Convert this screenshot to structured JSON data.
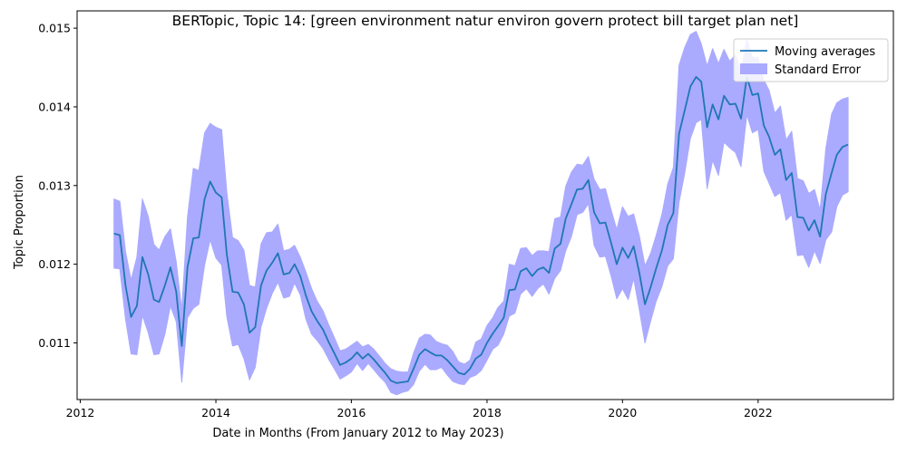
{
  "chart_data": {
    "type": "line",
    "title": "BERTopic, Topic 14: [green environment natur environ govern protect bill target plan net]",
    "xlabel": "Date in Months (From January 2012 to May 2023)",
    "ylabel": "Topic Proportion",
    "xlim": [
      "2011-12-15",
      "2023-12-31"
    ],
    "ylim": [
      0.01028,
      0.01522
    ],
    "xticks": [
      {
        "label": "2012",
        "date": "2012-01-01"
      },
      {
        "label": "2014",
        "date": "2014-01-01"
      },
      {
        "label": "2016",
        "date": "2016-01-01"
      },
      {
        "label": "2018",
        "date": "2018-01-01"
      },
      {
        "label": "2020",
        "date": "2020-01-01"
      },
      {
        "label": "2022",
        "date": "2022-01-01"
      }
    ],
    "yticks": [
      {
        "label": "0.011",
        "value": 0.011
      },
      {
        "label": "0.012",
        "value": 0.012
      },
      {
        "label": "0.013",
        "value": 0.013
      },
      {
        "label": "0.014",
        "value": 0.014
      },
      {
        "label": "0.015",
        "value": 0.015
      }
    ],
    "grid": false,
    "legend": {
      "position": "top-right",
      "entries": [
        {
          "label": "Moving averages",
          "kind": "line",
          "color": "#1f77b4"
        },
        {
          "label": "Standard Error",
          "kind": "band",
          "color": "#aaaaff"
        }
      ]
    },
    "series": [
      {
        "name": "Moving averages",
        "color": "#1f77b4",
        "x": [
          "2012-07",
          "2012-08",
          "2012-09",
          "2012-10",
          "2012-11",
          "2012-12",
          "2013-01",
          "2013-02",
          "2013-03",
          "2013-04",
          "2013-05",
          "2013-06",
          "2013-07",
          "2013-08",
          "2013-09",
          "2013-10",
          "2013-11",
          "2013-12",
          "2014-01",
          "2014-02",
          "2014-03",
          "2014-04",
          "2014-05",
          "2014-06",
          "2014-07",
          "2014-08",
          "2014-09",
          "2014-10",
          "2014-11",
          "2014-12",
          "2015-01",
          "2015-02",
          "2015-03",
          "2015-04",
          "2015-05",
          "2015-06",
          "2015-07",
          "2015-08",
          "2015-09",
          "2015-10",
          "2015-11",
          "2015-12",
          "2016-01",
          "2016-02",
          "2016-03",
          "2016-04",
          "2016-05",
          "2016-06",
          "2016-07",
          "2016-08",
          "2016-09",
          "2016-10",
          "2016-11",
          "2016-12",
          "2017-01",
          "2017-02",
          "2017-03",
          "2017-04",
          "2017-05",
          "2017-06",
          "2017-07",
          "2017-08",
          "2017-09",
          "2017-10",
          "2017-11",
          "2017-12",
          "2018-01",
          "2018-02",
          "2018-03",
          "2018-04",
          "2018-05",
          "2018-06",
          "2018-07",
          "2018-08",
          "2018-09",
          "2018-10",
          "2018-11",
          "2018-12",
          "2019-01",
          "2019-02",
          "2019-03",
          "2019-04",
          "2019-05",
          "2019-06",
          "2019-07",
          "2019-08",
          "2019-09",
          "2019-10",
          "2019-11",
          "2019-12",
          "2020-01",
          "2020-02",
          "2020-03",
          "2020-04",
          "2020-05",
          "2020-06",
          "2020-07",
          "2020-08",
          "2020-09",
          "2020-10",
          "2020-11",
          "2020-12",
          "2021-01",
          "2021-02",
          "2021-03",
          "2021-04",
          "2021-05",
          "2021-06",
          "2021-07",
          "2021-08",
          "2021-09",
          "2021-10",
          "2021-11",
          "2021-12",
          "2022-01",
          "2022-02",
          "2022-03",
          "2022-04",
          "2022-05",
          "2022-06",
          "2022-07",
          "2022-08",
          "2022-09",
          "2022-10",
          "2022-11",
          "2022-12",
          "2023-01",
          "2023-02",
          "2023-03",
          "2023-04",
          "2023-05"
        ],
        "values": [
          0.01239,
          0.01237,
          0.01173,
          0.01133,
          0.01147,
          0.01209,
          0.01187,
          0.01155,
          0.01152,
          0.01173,
          0.01196,
          0.01165,
          0.01096,
          0.01196,
          0.01233,
          0.01234,
          0.01283,
          0.01305,
          0.01291,
          0.01285,
          0.01212,
          0.01165,
          0.01164,
          0.01149,
          0.01113,
          0.0112,
          0.01173,
          0.01192,
          0.01202,
          0.01214,
          0.01187,
          0.01189,
          0.012,
          0.01185,
          0.0116,
          0.0114,
          0.01128,
          0.01117,
          0.01101,
          0.01087,
          0.01072,
          0.01075,
          0.0108,
          0.01088,
          0.0108,
          0.01086,
          0.01079,
          0.0107,
          0.01062,
          0.01052,
          0.01049,
          0.0105,
          0.01051,
          0.01067,
          0.01085,
          0.01092,
          0.01088,
          0.01084,
          0.01084,
          0.01078,
          0.0107,
          0.01062,
          0.0106,
          0.01067,
          0.0108,
          0.01085,
          0.011,
          0.01112,
          0.01121,
          0.01132,
          0.01167,
          0.01168,
          0.01191,
          0.01195,
          0.01185,
          0.01193,
          0.01196,
          0.01189,
          0.0122,
          0.01226,
          0.01258,
          0.01276,
          0.01295,
          0.01296,
          0.01307,
          0.01266,
          0.01252,
          0.01253,
          0.01227,
          0.012,
          0.01221,
          0.01208,
          0.01223,
          0.01189,
          0.01149,
          0.01171,
          0.01195,
          0.01218,
          0.0125,
          0.01265,
          0.01366,
          0.01395,
          0.01426,
          0.01438,
          0.01432,
          0.01374,
          0.01403,
          0.01384,
          0.01414,
          0.01403,
          0.01404,
          0.01385,
          0.01438,
          0.01415,
          0.01417,
          0.01376,
          0.01362,
          0.01339,
          0.01346,
          0.01307,
          0.01316,
          0.0126,
          0.01259,
          0.01243,
          0.01256,
          0.01235,
          0.01289,
          0.01316,
          0.01339,
          0.01349,
          0.01352
        ],
        "stderr": [
          0.00044,
          0.00043,
          0.00043,
          0.00047,
          0.00062,
          0.00074,
          0.00074,
          0.0007,
          0.00066,
          0.00062,
          0.00049,
          0.00038,
          0.00046,
          0.00064,
          0.00089,
          0.00085,
          0.00084,
          0.00074,
          0.00083,
          0.00086,
          0.00079,
          0.00069,
          0.00066,
          0.00069,
          0.0006,
          0.00051,
          0.00053,
          0.00048,
          0.00039,
          0.00037,
          0.0003,
          0.0003,
          0.00024,
          0.00024,
          0.0003,
          0.00029,
          0.00025,
          0.00024,
          0.00022,
          0.0002,
          0.00018,
          0.00017,
          0.00017,
          0.00014,
          0.00015,
          0.00012,
          0.00013,
          0.00013,
          0.00012,
          0.00015,
          0.00015,
          0.00013,
          0.00012,
          0.0002,
          0.00021,
          0.00019,
          0.00022,
          0.00018,
          0.00015,
          0.00019,
          0.00019,
          0.00014,
          0.00013,
          0.00011,
          0.00021,
          0.0002,
          0.00022,
          0.0002,
          0.00024,
          0.00021,
          0.00033,
          0.0003,
          0.00029,
          0.00026,
          0.00026,
          0.00024,
          0.00021,
          0.00027,
          0.00038,
          0.00034,
          0.00041,
          0.00041,
          0.00032,
          0.0003,
          0.0003,
          0.00042,
          0.00043,
          0.00043,
          0.00042,
          0.00044,
          0.00052,
          0.00053,
          0.00041,
          0.00047,
          0.00049,
          0.00043,
          0.00042,
          0.00046,
          0.00052,
          0.00058,
          0.00087,
          0.0008,
          0.00066,
          0.00058,
          0.00048,
          0.00078,
          0.00071,
          0.00071,
          0.00059,
          0.00055,
          0.00062,
          0.00061,
          0.00048,
          0.00048,
          0.00046,
          0.00058,
          0.00059,
          0.00053,
          0.00055,
          0.00051,
          0.00053,
          0.00049,
          0.00047,
          0.00047,
          0.00039,
          0.00034,
          0.00058,
          0.00075,
          0.00066,
          0.00061,
          0.0006
        ]
      }
    ]
  }
}
